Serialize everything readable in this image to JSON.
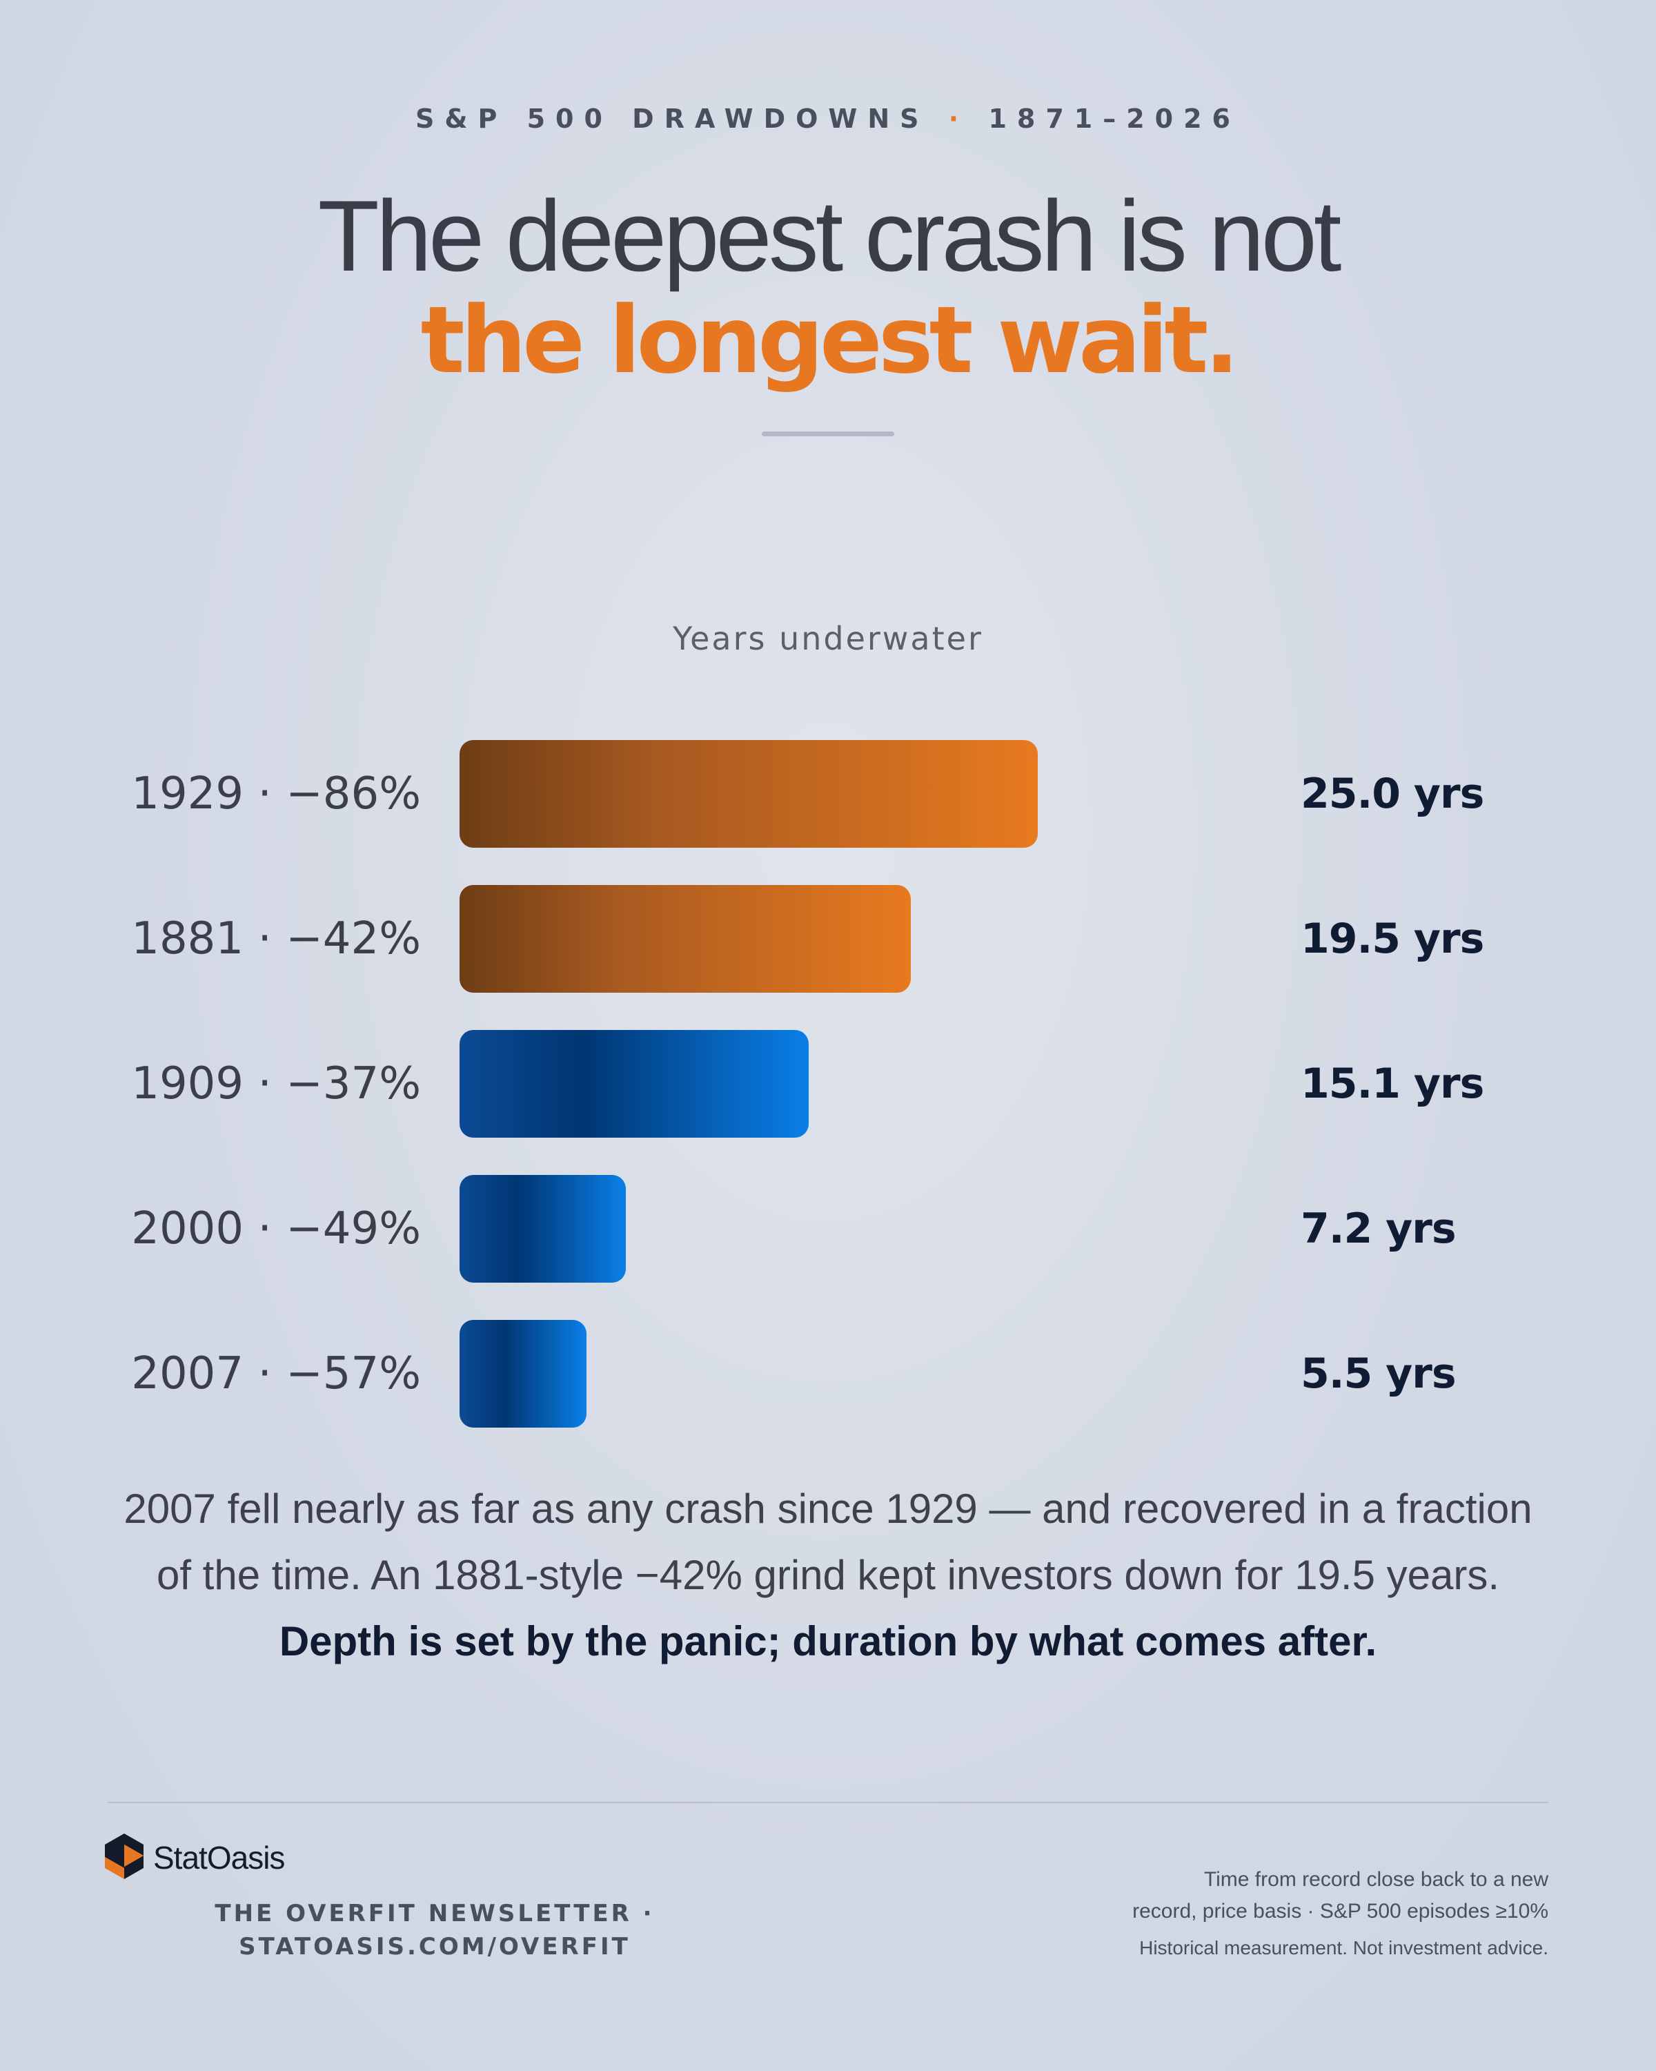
{
  "header": {
    "kicker_left": "S&P 500 DRAWDOWNS",
    "kicker_sep": "·",
    "kicker_right": "1871–2026",
    "title_line1": "The deepest crash is not",
    "title_line2": "the longest wait."
  },
  "colors": {
    "accent": "#e87722",
    "bar_orange": "#e87a1f",
    "bar_blue": "#0a7fe8",
    "dark_text": "#0f1c33"
  },
  "chart_data": {
    "type": "bar",
    "orientation": "horizontal",
    "title": "Years underwater",
    "categories": [
      "1929 · −86%",
      "1881 · −42%",
      "1909 · −37%",
      "2000 · −49%",
      "2007 · −57%"
    ],
    "values": [
      25.0,
      19.5,
      15.1,
      7.2,
      5.5
    ],
    "value_labels": [
      "25.0 yrs",
      "19.5 yrs",
      "15.1 yrs",
      "7.2 yrs",
      "5.5 yrs"
    ],
    "bar_colors": [
      "orange",
      "orange",
      "blue",
      "blue",
      "blue"
    ],
    "xlim": [
      0,
      25.0
    ]
  },
  "caption": {
    "text": "2007 fell nearly as far as any crash since 1929 — and recovered in a fraction of the time. An 1881-style −42% grind kept investors down for 19.5 years. ",
    "emphasis": "Depth is set by the panic; duration by what comes after."
  },
  "footer": {
    "brand": "StatOasis",
    "newsletter_line1": "THE OVERFIT NEWSLETTER ·",
    "newsletter_line2": "STATOASIS.COM/OVERFIT",
    "note_line1": "Time from record close back to a new",
    "note_line2": "record, price basis · S&P 500 episodes ≥10%",
    "disclaimer": "Historical measurement. Not investment advice."
  }
}
